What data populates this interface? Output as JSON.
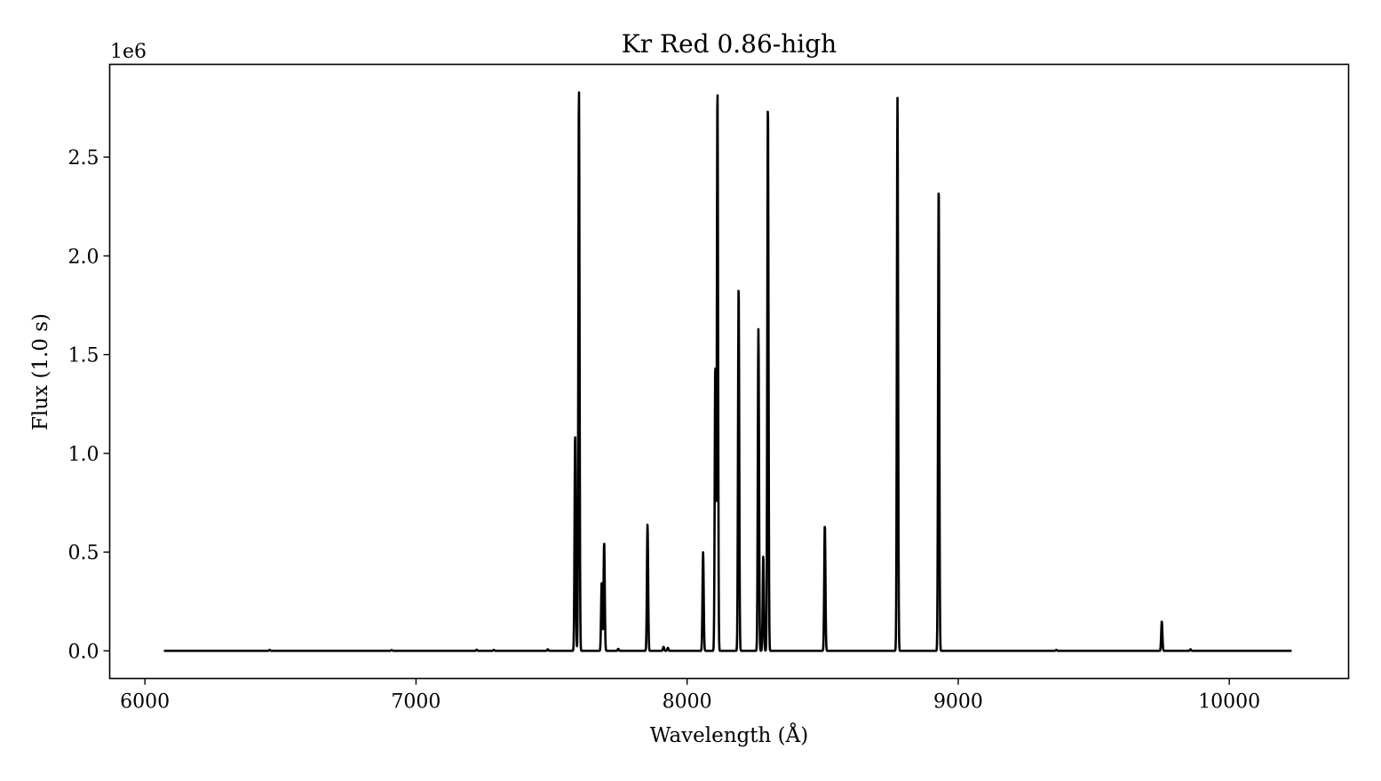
{
  "chart_data": {
    "type": "line",
    "title": "Kr Red 0.86-high",
    "xlabel": "Wavelength (Å)",
    "ylabel": "Flux (1.0 s)",
    "y_multiplier": "1e6",
    "xlim": [
      5870,
      10440
    ],
    "ylim": [
      -0.14,
      2.97
    ],
    "x_range": [
      6070,
      10230
    ],
    "xticks": [
      6000,
      7000,
      8000,
      9000,
      10000
    ],
    "xtick_labels": [
      "6000",
      "7000",
      "8000",
      "9000",
      "10000"
    ],
    "yticks": [
      0.0,
      0.5,
      1.0,
      1.5,
      2.0,
      2.5
    ],
    "ytick_labels": [
      "0.0",
      "0.5",
      "1.0",
      "1.5",
      "2.0",
      "2.5"
    ],
    "grid": false,
    "series": [
      {
        "color": "#000000",
        "lines": [
          {
            "wavelength": 6460,
            "flux": 0.005
          },
          {
            "wavelength": 6910,
            "flux": 0.004
          },
          {
            "wavelength": 7224,
            "flux": 0.006
          },
          {
            "wavelength": 7287,
            "flux": 0.005
          },
          {
            "wavelength": 7486,
            "flux": 0.008
          },
          {
            "wavelength": 7587,
            "flux": 1.1
          },
          {
            "wavelength": 7601,
            "flux": 2.85
          },
          {
            "wavelength": 7685,
            "flux": 0.35
          },
          {
            "wavelength": 7694,
            "flux": 0.55
          },
          {
            "wavelength": 7746,
            "flux": 0.01
          },
          {
            "wavelength": 7854,
            "flux": 0.64
          },
          {
            "wavelength": 7913,
            "flux": 0.02
          },
          {
            "wavelength": 7929,
            "flux": 0.015
          },
          {
            "wavelength": 8059,
            "flux": 0.5
          },
          {
            "wavelength": 8104,
            "flux": 1.45
          },
          {
            "wavelength": 8112,
            "flux": 2.85
          },
          {
            "wavelength": 8190,
            "flux": 1.85
          },
          {
            "wavelength": 8263,
            "flux": 1.63
          },
          {
            "wavelength": 8281,
            "flux": 0.48
          },
          {
            "wavelength": 8298,
            "flux": 2.78
          },
          {
            "wavelength": 8508,
            "flux": 0.64
          },
          {
            "wavelength": 8776,
            "flux": 2.8
          },
          {
            "wavelength": 8928,
            "flux": 2.37
          },
          {
            "wavelength": 9362,
            "flux": 0.005
          },
          {
            "wavelength": 9751,
            "flux": 0.15
          },
          {
            "wavelength": 9857,
            "flux": 0.008
          }
        ]
      }
    ]
  }
}
